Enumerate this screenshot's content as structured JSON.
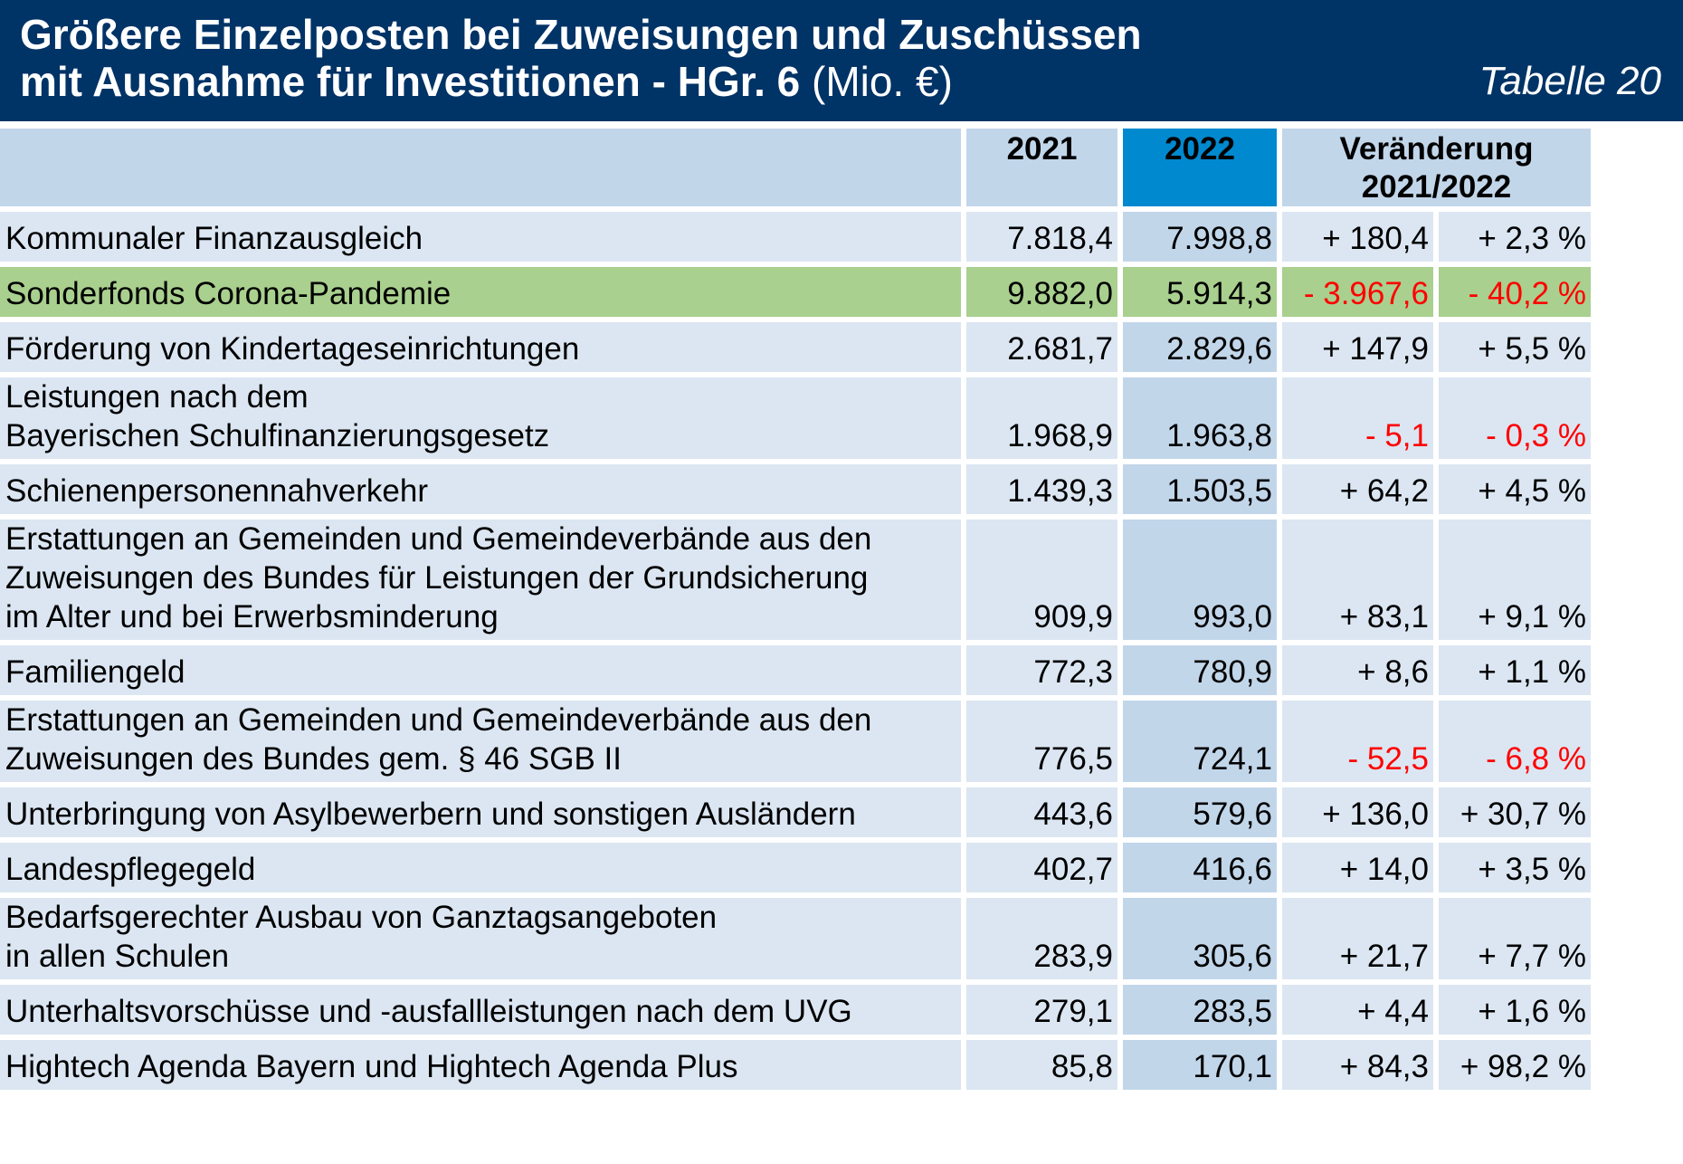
{
  "header": {
    "title_line1": "Größere Einzelposten bei Zuweisungen und Zuschüssen",
    "title_line2": "mit Ausnahme für Investitionen - HGr. 6",
    "title_unit": "(Mio. €)",
    "table_number": "Tabelle 20"
  },
  "colors": {
    "header_bg": "#003366",
    "highlight_row": "#a9d08e",
    "year_2022_header": "#0089cf",
    "negative_text": "#ff0000"
  },
  "columns": {
    "label": "",
    "y2021": "2021",
    "y2022": "2022",
    "change_line1": "Veränderung",
    "change_line2": "2021/2022"
  },
  "rows": [
    {
      "label": "Kommunaler Finanzausgleich",
      "y2021": "7.818,4",
      "y2022": "7.998,8",
      "abs": "+ 180,4",
      "pct": "+ 2,3 %",
      "negative": false,
      "highlight": false
    },
    {
      "label": "Sonderfonds Corona-Pandemie",
      "y2021": "9.882,0",
      "y2022": "5.914,3",
      "abs": "- 3.967,6",
      "pct": "- 40,2 %",
      "negative": true,
      "highlight": true
    },
    {
      "label": "Förderung von Kindertageseinrichtungen",
      "y2021": "2.681,7",
      "y2022": "2.829,6",
      "abs": "+ 147,9",
      "pct": "+ 5,5 %",
      "negative": false,
      "highlight": false
    },
    {
      "label": "Leistungen nach dem\nBayerischen Schulfinanzierungsgesetz",
      "y2021": "1.968,9",
      "y2022": "1.963,8",
      "abs": "- 5,1",
      "pct": "- 0,3 %",
      "negative": true,
      "highlight": false
    },
    {
      "label": "Schienenpersonennahverkehr",
      "y2021": "1.439,3",
      "y2022": "1.503,5",
      "abs": "+ 64,2",
      "pct": "+ 4,5 %",
      "negative": false,
      "highlight": false
    },
    {
      "label": "Erstattungen an Gemeinden und Gemeindeverbände aus den\nZuweisungen des Bundes für Leistungen der Grundsicherung\nim Alter und bei Erwerbsminderung",
      "y2021": "909,9",
      "y2022": "993,0",
      "abs": "+ 83,1",
      "pct": "+ 9,1 %",
      "negative": false,
      "highlight": false
    },
    {
      "label": "Familiengeld",
      "y2021": "772,3",
      "y2022": "780,9",
      "abs": "+ 8,6",
      "pct": "+ 1,1 %",
      "negative": false,
      "highlight": false
    },
    {
      "label": "Erstattungen an Gemeinden und Gemeindeverbände aus den\nZuweisungen des Bundes gem. § 46 SGB II",
      "y2021": "776,5",
      "y2022": "724,1",
      "abs": "- 52,5",
      "pct": "- 6,8 %",
      "negative": true,
      "highlight": false
    },
    {
      "label": "Unterbringung von Asylbewerbern und sonstigen Ausländern",
      "y2021": "443,6",
      "y2022": "579,6",
      "abs": "+ 136,0",
      "pct": "+ 30,7 %",
      "negative": false,
      "highlight": false
    },
    {
      "label": "Landespflegegeld",
      "y2021": "402,7",
      "y2022": "416,6",
      "abs": "+ 14,0",
      "pct": "+ 3,5 %",
      "negative": false,
      "highlight": false
    },
    {
      "label": "Bedarfsgerechter Ausbau von Ganztagsangeboten\nin allen Schulen",
      "y2021": "283,9",
      "y2022": "305,6",
      "abs": "+ 21,7",
      "pct": "+ 7,7 %",
      "negative": false,
      "highlight": false
    },
    {
      "label": "Unterhaltsvorschüsse und -ausfallleistungen nach dem UVG",
      "y2021": "279,1",
      "y2022": "283,5",
      "abs": "+ 4,4",
      "pct": "+ 1,6 %",
      "negative": false,
      "highlight": false
    },
    {
      "label": "Hightech Agenda Bayern und Hightech Agenda Plus",
      "y2021": "85,8",
      "y2022": "170,1",
      "abs": "+ 84,3",
      "pct": "+ 98,2 %",
      "negative": false,
      "highlight": false
    }
  ]
}
